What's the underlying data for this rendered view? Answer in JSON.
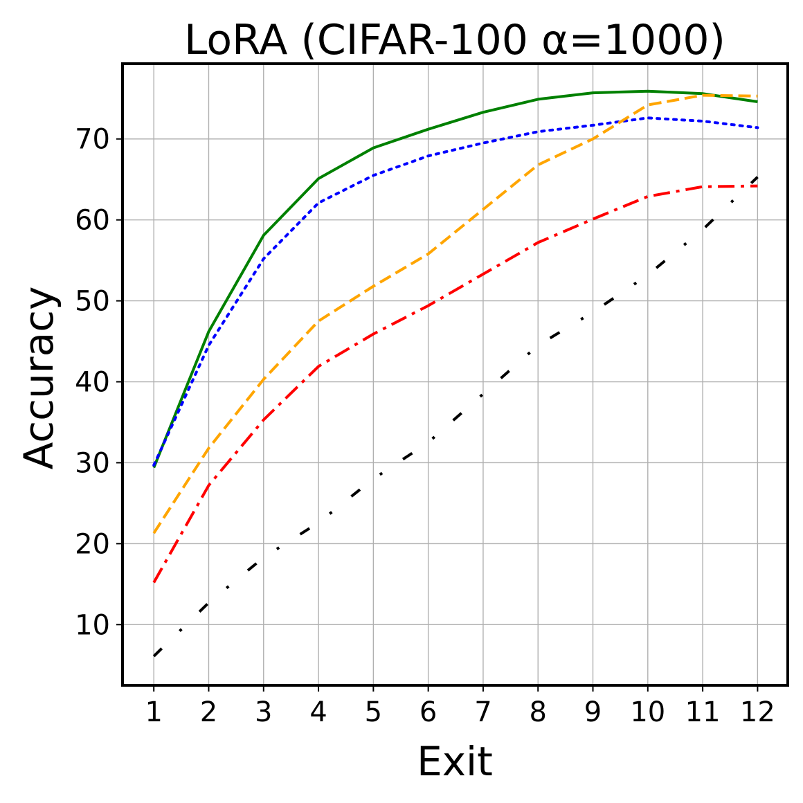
{
  "chart_data": {
    "type": "line",
    "title": "LoRA (CIFAR-100 α=1000)",
    "xlabel": "Exit",
    "ylabel": "Accuracy",
    "x": [
      1,
      2,
      3,
      4,
      5,
      6,
      7,
      8,
      9,
      10,
      11,
      12
    ],
    "xticks": [
      "1",
      "2",
      "3",
      "4",
      "5",
      "6",
      "7",
      "8",
      "9",
      "10",
      "11",
      "12"
    ],
    "yticks": [
      "10",
      "20",
      "30",
      "40",
      "50",
      "60",
      "70"
    ],
    "xlim": [
      0.43,
      12.55
    ],
    "ylim": [
      2.5,
      79.3
    ],
    "grid": true,
    "series": [
      {
        "name": "green-solid",
        "color": "#008000",
        "style": "solid",
        "values": [
          29.4,
          46.2,
          58.1,
          65.1,
          68.9,
          71.2,
          73.3,
          74.9,
          75.7,
          75.9,
          75.6,
          74.6
        ]
      },
      {
        "name": "blue-dotted",
        "color": "#0000ff",
        "style": "dotted",
        "values": [
          29.7,
          44.5,
          55.2,
          62.1,
          65.5,
          67.9,
          69.5,
          70.9,
          71.7,
          72.6,
          72.2,
          71.4
        ]
      },
      {
        "name": "orange-dashed",
        "color": "#ffa500",
        "style": "dashed",
        "values": [
          21.3,
          31.8,
          40.3,
          47.5,
          51.8,
          55.8,
          61.3,
          66.8,
          70.0,
          74.2,
          75.4,
          75.3
        ]
      },
      {
        "name": "red-dashdot",
        "color": "#ff0000",
        "style": "dashdot",
        "values": [
          15.2,
          27.2,
          35.3,
          41.9,
          45.9,
          49.4,
          53.3,
          57.2,
          60.1,
          62.9,
          64.1,
          64.2
        ]
      },
      {
        "name": "black-loosely-dashdot",
        "color": "#000000",
        "style": "loose-dashdot",
        "values": [
          6.1,
          12.7,
          18.3,
          22.6,
          28.0,
          32.5,
          38.5,
          44.5,
          48.6,
          53.2,
          58.8,
          65.3
        ]
      }
    ]
  }
}
